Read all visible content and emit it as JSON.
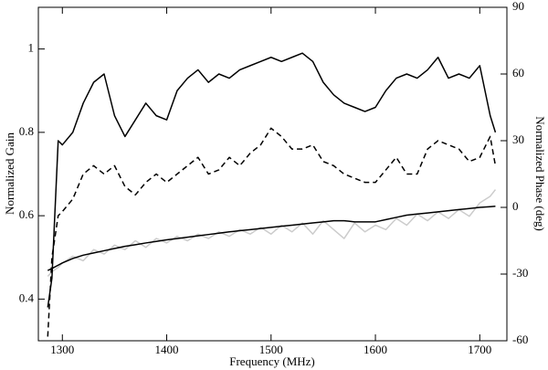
{
  "chart_data": {
    "type": "line",
    "x_label": "Frequency (MHz)",
    "y_label": "Normalized Gain",
    "y2_label": "Normalized Phase (deg)",
    "x": [
      1286,
      1290,
      1296,
      1300,
      1310,
      1320,
      1330,
      1340,
      1350,
      1360,
      1370,
      1380,
      1390,
      1400,
      1410,
      1420,
      1430,
      1440,
      1450,
      1460,
      1470,
      1480,
      1490,
      1500,
      1510,
      1520,
      1530,
      1540,
      1550,
      1560,
      1570,
      1580,
      1590,
      1600,
      1610,
      1620,
      1630,
      1640,
      1650,
      1660,
      1670,
      1680,
      1690,
      1700,
      1710,
      1715
    ],
    "xlim": [
      1277,
      1726
    ],
    "xticks": [
      1300,
      1400,
      1500,
      1600,
      1700
    ],
    "ylim": [
      0.3,
      1.1
    ],
    "yticks": [
      0.4,
      0.6,
      0.8,
      1
    ],
    "y2lim": [
      -60,
      90
    ],
    "y2ticks": [
      -60,
      -30,
      0,
      30,
      60,
      90
    ],
    "series": [
      {
        "color": "#cccccc",
        "line_style": "solid",
        "axis": "y2",
        "values": [
          -31,
          -29,
          -27,
          -25,
          -22,
          -24,
          -19,
          -21,
          -17,
          -19,
          -15,
          -18,
          -14,
          -16,
          -13,
          -15,
          -12,
          -14,
          -11,
          -13,
          -10,
          -12,
          -9,
          -12,
          -8,
          -11,
          -7,
          -12,
          -6,
          -10,
          -14,
          -7,
          -11,
          -8,
          -10,
          -5,
          -8,
          -3,
          -6,
          -2,
          -5,
          -1,
          -4,
          2,
          5,
          8
        ]
      },
      {
        "color": "#000000",
        "line_style": "solid",
        "axis": "y2",
        "values": [
          -28.4,
          -27.5,
          -26,
          -25,
          -23,
          -21.5,
          -20.5,
          -19.5,
          -18.5,
          -17.5,
          -16.8,
          -16,
          -15.3,
          -14.6,
          -14,
          -13.4,
          -12.8,
          -12.2,
          -11.6,
          -11,
          -10.5,
          -10,
          -9.5,
          -9,
          -8.5,
          -8,
          -7.5,
          -7,
          -6.5,
          -6,
          -6,
          -6.5,
          -6.5,
          -6.5,
          -5.5,
          -4.5,
          -3.5,
          -3,
          -2.5,
          -2,
          -1.5,
          -1,
          -0.5,
          0,
          0.3,
          0.5
        ]
      },
      {
        "color": "#000000",
        "line_style": "solid",
        "axis": "y",
        "values": [
          0.38,
          0.45,
          0.78,
          0.77,
          0.8,
          0.87,
          0.92,
          0.94,
          0.84,
          0.79,
          0.83,
          0.87,
          0.84,
          0.83,
          0.9,
          0.93,
          0.95,
          0.92,
          0.94,
          0.93,
          0.95,
          0.96,
          0.97,
          0.98,
          0.97,
          0.98,
          0.99,
          0.97,
          0.92,
          0.89,
          0.87,
          0.86,
          0.85,
          0.86,
          0.9,
          0.93,
          0.94,
          0.93,
          0.95,
          0.98,
          0.93,
          0.94,
          0.93,
          0.96,
          0.84,
          0.8
        ]
      },
      {
        "color": "#000000",
        "line_style": "dashed",
        "axis": "y",
        "values": [
          0.31,
          0.5,
          0.6,
          0.61,
          0.64,
          0.7,
          0.72,
          0.7,
          0.72,
          0.67,
          0.65,
          0.68,
          0.7,
          0.68,
          0.7,
          0.72,
          0.74,
          0.7,
          0.71,
          0.74,
          0.72,
          0.75,
          0.77,
          0.81,
          0.79,
          0.76,
          0.76,
          0.77,
          0.73,
          0.72,
          0.7,
          0.69,
          0.68,
          0.68,
          0.71,
          0.74,
          0.7,
          0.7,
          0.76,
          0.78,
          0.77,
          0.76,
          0.73,
          0.74,
          0.79,
          0.72
        ]
      }
    ]
  }
}
